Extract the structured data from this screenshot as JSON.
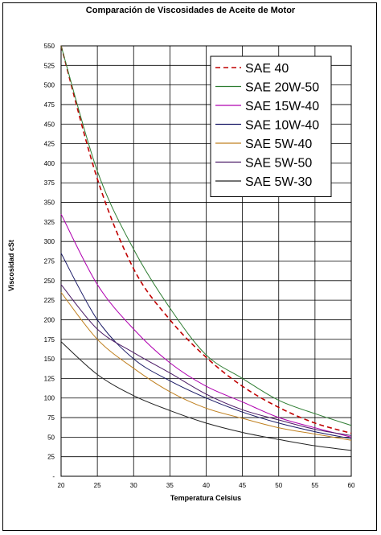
{
  "chart_data": {
    "type": "line",
    "title": "Comparación de Viscosidades de Aceite de Motor",
    "xlabel": "Temperatura Celsius",
    "ylabel": "Viscosidad cSt",
    "xlim": [
      20,
      60
    ],
    "ylim": [
      0,
      550
    ],
    "x_ticks": [
      "20",
      "25",
      "30",
      "35",
      "40",
      "45",
      "50",
      "55",
      "60"
    ],
    "y_ticks": [
      "-",
      "25",
      "50",
      "75",
      "100",
      "125",
      "150",
      "175",
      "200",
      "225",
      "250",
      "275",
      "300",
      "325",
      "350",
      "375",
      "400",
      "425",
      "450",
      "475",
      "500",
      "525",
      "550"
    ],
    "grid": true,
    "legend_position": "top-right",
    "x": [
      20,
      25,
      30,
      35,
      40,
      45,
      50,
      55,
      60
    ],
    "series": [
      {
        "name": "SAE 40",
        "color": "#c00000",
        "dash": true,
        "values": [
          550,
          380,
          265,
          200,
          152,
          115,
          88,
          68,
          55
        ]
      },
      {
        "name": "SAE 20W-50",
        "color": "#2e7d32",
        "dash": false,
        "values": [
          550,
          390,
          290,
          215,
          155,
          125,
          97,
          80,
          65
        ]
      },
      {
        "name": "SAE 15W-40",
        "color": "#b000b0",
        "dash": false,
        "values": [
          335,
          245,
          188,
          145,
          115,
          95,
          75,
          62,
          50
        ]
      },
      {
        "name": "SAE 10W-40",
        "color": "#1a1a66",
        "dash": false,
        "values": [
          285,
          200,
          150,
          122,
          100,
          82,
          68,
          57,
          48
        ]
      },
      {
        "name": "SAE 5W-40",
        "color": "#c08020",
        "dash": false,
        "values": [
          235,
          175,
          138,
          108,
          87,
          74,
          62,
          54,
          46
        ]
      },
      {
        "name": "SAE 5W-50",
        "color": "#4b1a66",
        "dash": false,
        "values": [
          245,
          188,
          158,
          132,
          105,
          85,
          72,
          60,
          52
        ]
      },
      {
        "name": "SAE 5W-30",
        "color": "#202020",
        "dash": false,
        "values": [
          172,
          130,
          103,
          84,
          68,
          56,
          47,
          39,
          33
        ]
      }
    ]
  }
}
